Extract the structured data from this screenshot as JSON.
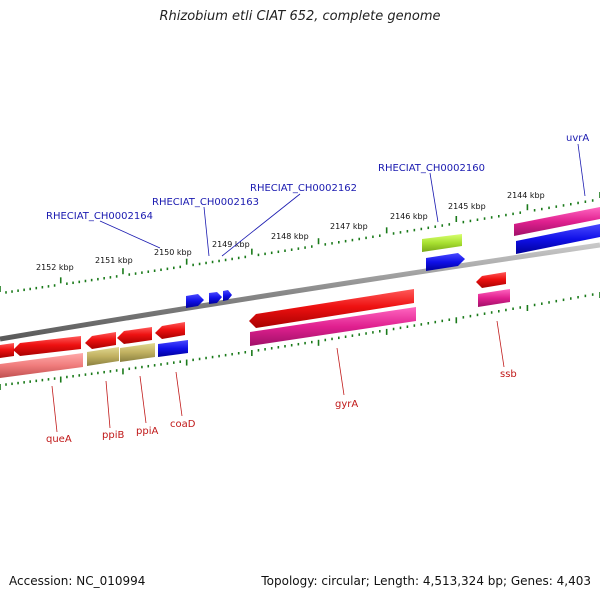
{
  "title": "Rhizobium etli CIAT 652, complete genome",
  "footer": {
    "accession": "Accession: NC_010994",
    "summary": "Topology: circular; Length: 4,513,324 bp; Genes: 4,403"
  },
  "colors": {
    "backbone": "#8a8a8a",
    "tick": "#1a7a1a",
    "blue_label": "#1a1ab0",
    "red_label": "#c01818"
  },
  "scale_labels": [
    "2152 kbp",
    "2151 kbp",
    "2150 kbp",
    "2149 kbp",
    "2148 kbp",
    "2147 kbp",
    "2146 kbp",
    "2145 kbp",
    "2144 kbp"
  ],
  "top_labels": [
    "RHECIAT_CH0002164",
    "RHECIAT_CH0002163",
    "RHECIAT_CH0002162",
    "RHECIAT_CH0002160",
    "uvrA"
  ],
  "bottom_labels": [
    "queA",
    "ppiB",
    "ppiA",
    "coaD",
    "gyrA",
    "ssb"
  ]
}
